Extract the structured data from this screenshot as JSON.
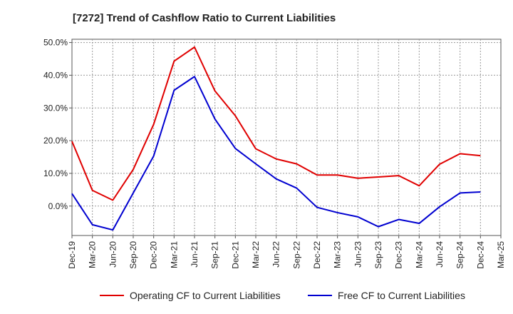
{
  "chart_data": {
    "type": "line",
    "title": "[7272]  Trend of Cashflow Ratio to Current Liabilities",
    "xlabel": "",
    "ylabel": "",
    "x": [
      "Dec-19",
      "Mar-20",
      "Jun-20",
      "Sep-20",
      "Dec-20",
      "Mar-21",
      "Jun-21",
      "Sep-21",
      "Dec-21",
      "Mar-22",
      "Jun-22",
      "Sep-22",
      "Dec-22",
      "Mar-23",
      "Jun-23",
      "Sep-23",
      "Dec-23",
      "Mar-24",
      "Jun-24",
      "Sep-24",
      "Dec-24",
      "Mar-25"
    ],
    "y_ticks": [
      "50.0%",
      "40.0%",
      "30.0%",
      "20.0%",
      "10.0%",
      "0.0%"
    ],
    "y_tick_values": [
      50,
      40,
      30,
      20,
      10,
      0
    ],
    "ylim": [
      -9,
      51
    ],
    "grid": true,
    "legend_position": "bottom",
    "series": [
      {
        "name": "Operating CF to Current Liabilities",
        "color": "#e00000",
        "values": [
          19.8,
          4.8,
          1.8,
          11.2,
          25.0,
          44.3,
          48.6,
          35.2,
          27.6,
          17.5,
          14.4,
          12.9,
          9.5,
          9.5,
          8.5,
          8.9,
          9.3,
          6.2,
          12.8,
          16.0,
          15.4,
          null
        ]
      },
      {
        "name": "Free CF to Current Liabilities",
        "color": "#0000d0",
        "values": [
          3.8,
          -5.7,
          -7.3,
          4.0,
          15.3,
          35.4,
          39.6,
          26.6,
          17.6,
          12.9,
          8.3,
          5.5,
          -0.4,
          -2.0,
          -3.3,
          -6.3,
          -4.1,
          -5.3,
          -0.2,
          4.0,
          4.3,
          null
        ]
      }
    ]
  }
}
